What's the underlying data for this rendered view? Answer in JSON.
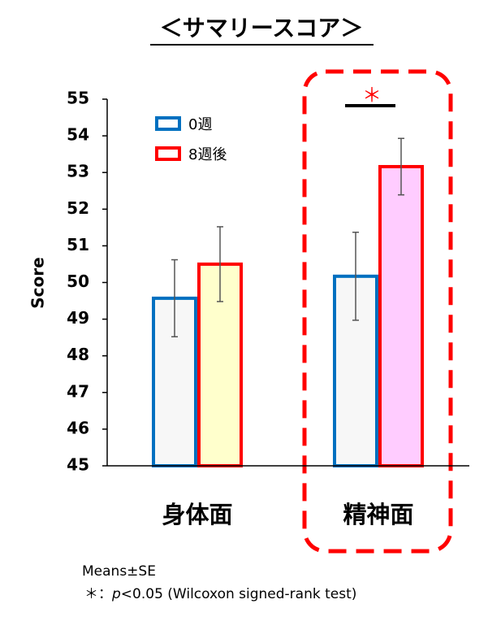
{
  "chart_data": {
    "type": "bar",
    "title": "＜サマリースコア＞",
    "y_label": "Score",
    "categories": [
      "身体面",
      "精神面"
    ],
    "series": [
      {
        "name": "0週",
        "color": "#0070c0",
        "fill_colors": [
          "#f7f7f7",
          "#f7f7f7"
        ],
        "values": [
          49.57,
          50.17
        ],
        "errors": [
          1.05,
          1.2
        ]
      },
      {
        "name": "8週後",
        "color": "#ff0000",
        "fill_colors": [
          "#ffffcc",
          "#ffccff"
        ],
        "values": [
          50.5,
          53.16
        ],
        "errors": [
          1.02,
          0.77
        ]
      }
    ],
    "ylim": [
      45,
      55
    ],
    "yticks": [
      45,
      46,
      47,
      48,
      49,
      50,
      51,
      52,
      53,
      54,
      55
    ],
    "annotation": "＊",
    "notes": [
      "Means±SE",
      [
        "＊：",
        "p",
        "<0.05 (Wilcoxon signed-rank test)"
      ]
    ]
  }
}
